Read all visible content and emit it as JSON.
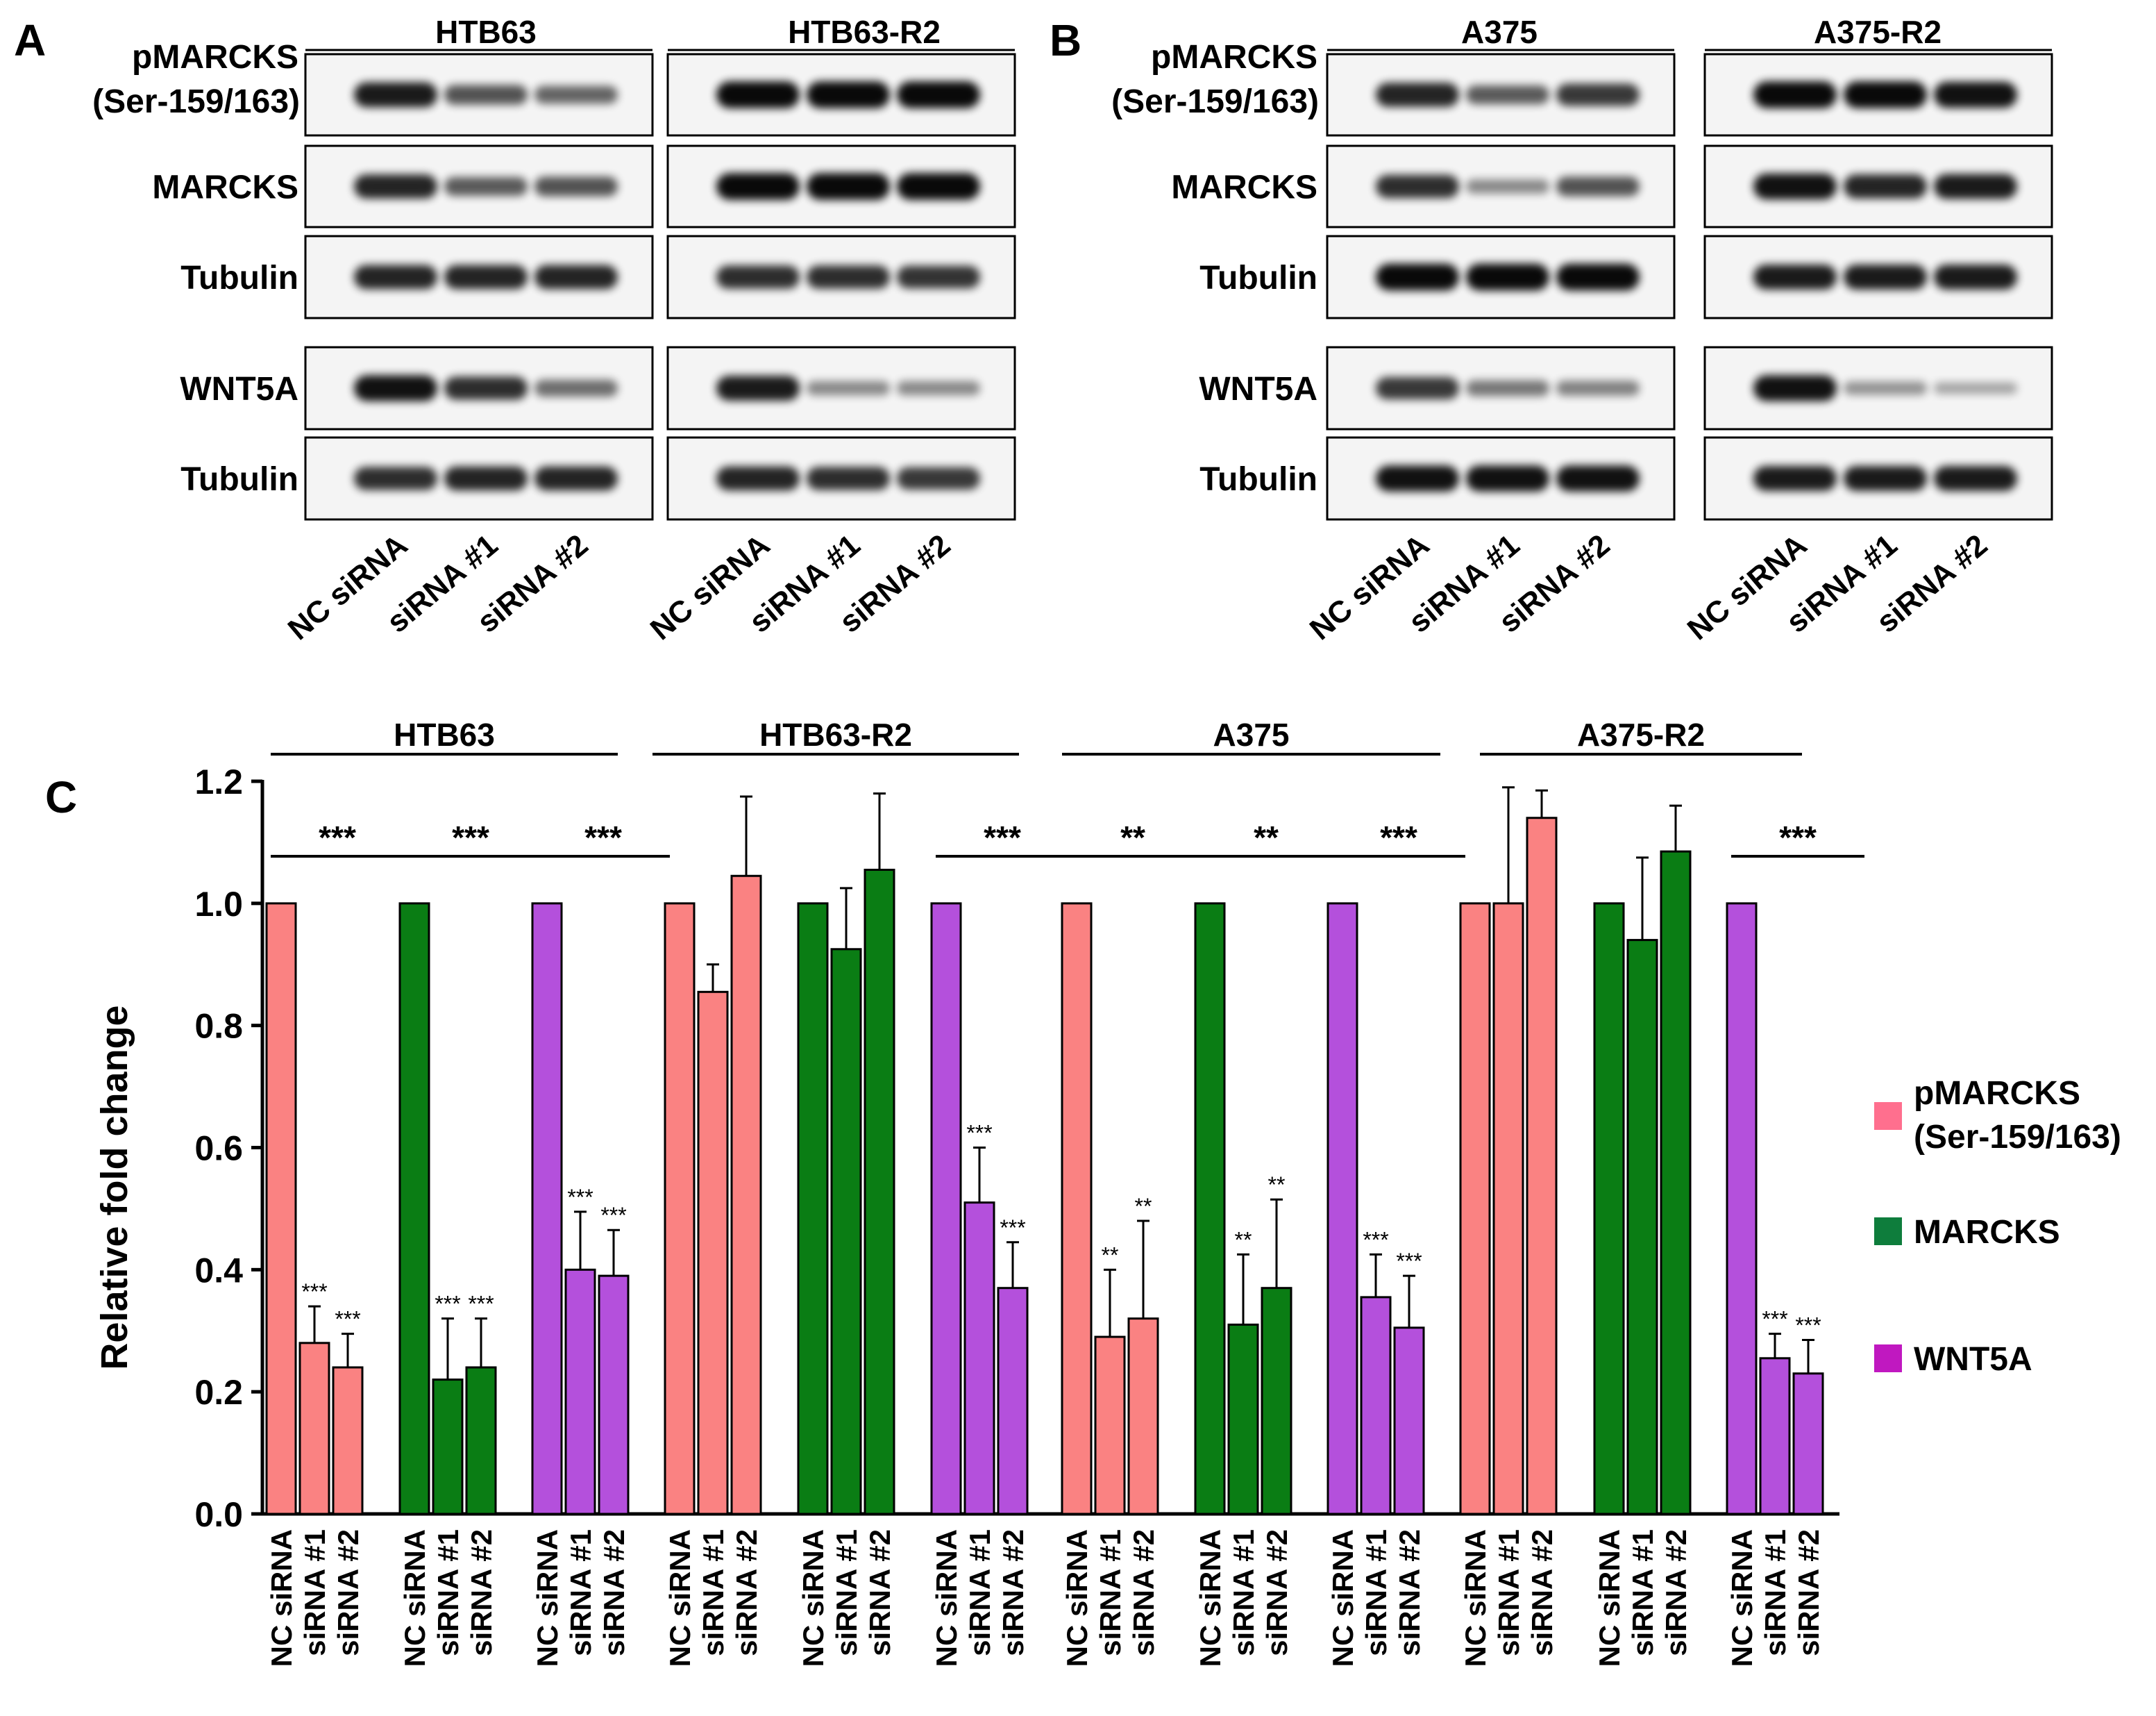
{
  "panel_a": {
    "letter": "A",
    "cell_lines": [
      "HTB63",
      "HTB63-R2"
    ],
    "rows": [
      {
        "label": "pMARCKS\n(Ser-159/163)",
        "line1": "pMARCKS",
        "line2": "(Ser-159/163)",
        "intensities": [
          [
            0.85,
            0.55,
            0.45
          ],
          [
            0.95,
            0.95,
            0.95
          ]
        ]
      },
      {
        "label": "MARCKS",
        "intensities": [
          [
            0.8,
            0.5,
            0.55
          ],
          [
            0.95,
            0.95,
            0.95
          ]
        ]
      },
      {
        "label": "Tubulin",
        "intensities": [
          [
            0.8,
            0.8,
            0.8
          ],
          [
            0.75,
            0.75,
            0.72
          ]
        ]
      },
      {
        "label": "WNT5A",
        "intensities": [
          [
            0.9,
            0.75,
            0.4
          ],
          [
            0.85,
            0.25,
            0.25
          ]
        ]
      },
      {
        "label": "Tubulin",
        "intensities": [
          [
            0.75,
            0.8,
            0.8
          ],
          [
            0.8,
            0.75,
            0.7
          ]
        ]
      }
    ],
    "lanes": [
      "NC siRNA",
      "siRNA #1",
      "siRNA #2"
    ]
  },
  "panel_b": {
    "letter": "B",
    "cell_lines": [
      "A375",
      "A375-R2"
    ],
    "rows": [
      {
        "label": "pMARCKS\n(Ser-159/163)",
        "line1": "pMARCKS",
        "line2": "(Ser-159/163)",
        "intensities": [
          [
            0.8,
            0.5,
            0.7
          ],
          [
            0.95,
            0.95,
            0.9
          ]
        ]
      },
      {
        "label": "MARCKS",
        "intensities": [
          [
            0.75,
            0.25,
            0.55
          ],
          [
            0.9,
            0.8,
            0.85
          ]
        ]
      },
      {
        "label": "Tubulin",
        "intensities": [
          [
            0.95,
            0.95,
            0.95
          ],
          [
            0.85,
            0.85,
            0.85
          ]
        ]
      },
      {
        "label": "WNT5A",
        "intensities": [
          [
            0.7,
            0.35,
            0.3
          ],
          [
            0.9,
            0.2,
            0.1
          ]
        ]
      },
      {
        "label": "Tubulin",
        "intensities": [
          [
            0.9,
            0.9,
            0.9
          ],
          [
            0.85,
            0.85,
            0.85
          ]
        ]
      }
    ],
    "lanes": [
      "NC siRNA",
      "siRNA #1",
      "siRNA #2"
    ]
  },
  "panel_c": {
    "letter": "C",
    "legend": [
      {
        "label": "pMARCKS",
        "label2": "(Ser-159/163)",
        "color": "#ff6f8e"
      },
      {
        "label": "MARCKS",
        "color": "#0e7d3c"
      },
      {
        "label": "WNT5A",
        "color": "#c018c0"
      }
    ]
  },
  "chart_data": {
    "type": "bar",
    "title": "",
    "xlabel": "",
    "ylabel": "Relative fold change",
    "ylim": [
      0,
      1.2
    ],
    "yticks": [
      "0.0",
      "0.2",
      "0.4",
      "0.6",
      "0.8",
      "1.0",
      "1.2"
    ],
    "cell_lines": [
      "HTB63",
      "HTB63-R2",
      "A375",
      "A375-R2"
    ],
    "categories": [
      "NC siRNA",
      "siRNA #1",
      "siRNA #2"
    ],
    "colors": {
      "pMARCKS": "#fa8282",
      "MARCKS": "#0a7d14",
      "WNT5A": "#b450dc"
    },
    "groups": [
      {
        "cell_line": "HTB63",
        "protein": "pMARCKS",
        "values": [
          1.0,
          0.28,
          0.24
        ],
        "errors": [
          0,
          0.06,
          0.055
        ],
        "bar_sig": [
          "",
          "***",
          "***"
        ],
        "group_sig": "***"
      },
      {
        "cell_line": "HTB63",
        "protein": "MARCKS",
        "values": [
          1.0,
          0.22,
          0.24
        ],
        "errors": [
          0,
          0.1,
          0.08
        ],
        "bar_sig": [
          "",
          "***",
          "***"
        ],
        "group_sig": "***"
      },
      {
        "cell_line": "HTB63",
        "protein": "WNT5A",
        "values": [
          1.0,
          0.4,
          0.39
        ],
        "errors": [
          0,
          0.095,
          0.075
        ],
        "bar_sig": [
          "",
          "***",
          "***"
        ],
        "group_sig": "***"
      },
      {
        "cell_line": "HTB63-R2",
        "protein": "pMARCKS",
        "values": [
          1.0,
          0.855,
          1.045
        ],
        "errors": [
          0,
          0.045,
          0.13
        ],
        "bar_sig": [
          "",
          "",
          ""
        ],
        "group_sig": ""
      },
      {
        "cell_line": "HTB63-R2",
        "protein": "MARCKS",
        "values": [
          1.0,
          0.925,
          1.055
        ],
        "errors": [
          0,
          0.1,
          0.125
        ],
        "bar_sig": [
          "",
          "",
          ""
        ],
        "group_sig": ""
      },
      {
        "cell_line": "HTB63-R2",
        "protein": "WNT5A",
        "values": [
          1.0,
          0.51,
          0.37
        ],
        "errors": [
          0,
          0.09,
          0.075
        ],
        "bar_sig": [
          "",
          "***",
          "***"
        ],
        "group_sig": "***"
      },
      {
        "cell_line": "A375",
        "protein": "pMARCKS",
        "values": [
          1.0,
          0.29,
          0.32
        ],
        "errors": [
          0,
          0.11,
          0.16
        ],
        "bar_sig": [
          "",
          "**",
          "**"
        ],
        "group_sig": "**"
      },
      {
        "cell_line": "A375",
        "protein": "MARCKS",
        "values": [
          1.0,
          0.31,
          0.37
        ],
        "errors": [
          0,
          0.115,
          0.145
        ],
        "bar_sig": [
          "",
          "**",
          "**"
        ],
        "group_sig": "**"
      },
      {
        "cell_line": "A375",
        "protein": "WNT5A",
        "values": [
          1.0,
          0.355,
          0.305
        ],
        "errors": [
          0,
          0.07,
          0.085
        ],
        "bar_sig": [
          "",
          "***",
          "***"
        ],
        "group_sig": "***"
      },
      {
        "cell_line": "A375-R2",
        "protein": "pMARCKS",
        "values": [
          1.0,
          1.0,
          1.14
        ],
        "errors": [
          0,
          0.19,
          0.045
        ],
        "bar_sig": [
          "",
          "",
          ""
        ],
        "group_sig": ""
      },
      {
        "cell_line": "A375-R2",
        "protein": "MARCKS",
        "values": [
          1.0,
          0.94,
          1.085
        ],
        "errors": [
          0,
          0.135,
          0.075
        ],
        "bar_sig": [
          "",
          "",
          ""
        ],
        "group_sig": ""
      },
      {
        "cell_line": "A375-R2",
        "protein": "WNT5A",
        "values": [
          1.0,
          0.255,
          0.23
        ],
        "errors": [
          0,
          0.04,
          0.055
        ],
        "bar_sig": [
          "",
          "***",
          "***"
        ],
        "group_sig": "***"
      }
    ]
  }
}
